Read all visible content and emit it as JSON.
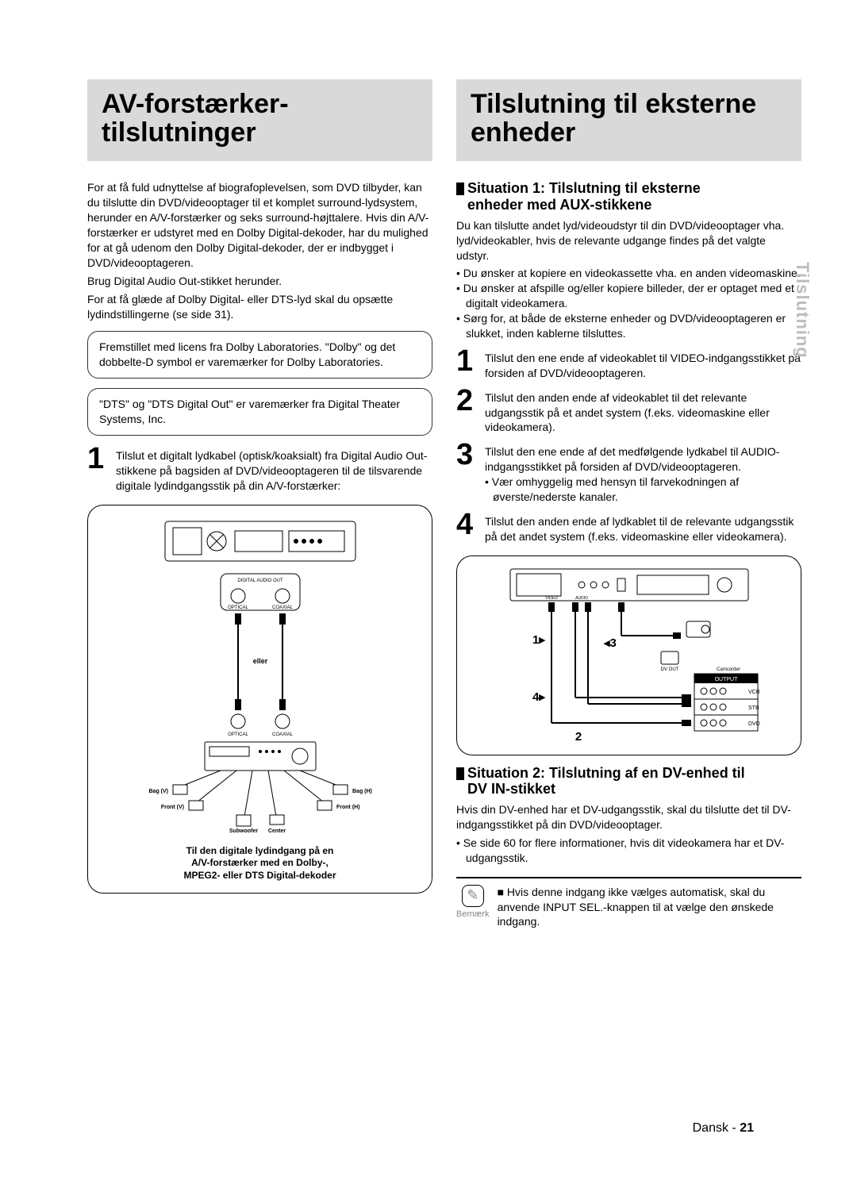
{
  "page": {
    "side_tab": "Tilslutning",
    "footer_lang": "Dansk",
    "footer_page": "21",
    "colors": {
      "title_bg": "#d9d9d9",
      "text": "#000000",
      "side_tab": "#bdbdbd"
    }
  },
  "left": {
    "title_line1": "AV-forstærker-",
    "title_line2": "tilslutninger",
    "intro": "For at få fuld udnyttelse af biografoplevelsen, som DVD tilbyder, kan du tilslutte din DVD/videooptager til et komplet surround-lydsystem, herunder en A/V-forstærker og seks surround-højttalere. Hvis din A/V-forstærker er udstyret med en Dolby Digital-dekoder, har du mulighed for at gå udenom den Dolby Digital-dekoder, der er indbygget i DVD/videooptageren.",
    "intro2": "Brug Digital Audio Out-stikket herunder.",
    "intro3": "For at få glæde af Dolby Digital- eller DTS-lyd skal du opsætte lydindstillingerne (se side 31).",
    "box1": "Fremstillet med licens fra Dolby Laboratories. \"Dolby\" og det dobbelte-D symbol er varemærker for Dolby Laboratories.",
    "box2": "\"DTS\" og \"DTS Digital Out\" er varemærker fra Digital Theater Systems, Inc.",
    "step1": "Tilslut et digitalt lydkabel (optisk/koaksialt) fra Digital Audio Out-stikkene på bagsiden af DVD/videooptageren til de tilsvarende digitale lydindgangsstik på din A/V-forstærker:",
    "diagram": {
      "labels": {
        "digital_out": "DIGITAL AUDIO OUT",
        "optical": "OPTICAL",
        "coaxial": "COAXIAL",
        "or": "eller",
        "bag_v": "Bag (V)",
        "bag_h": "Bag (H)",
        "front_v": "Front (V)",
        "front_h": "Front (H)",
        "sub": "Subwoofer",
        "center": "Center"
      },
      "caption_l1": "Til den digitale lydindgang på en",
      "caption_l2": "A/V-forstærker med en Dolby-,",
      "caption_l3": "MPEG2- eller DTS Digital-dekoder"
    }
  },
  "right": {
    "title_line1": "Tilslutning til eksterne",
    "title_line2": "enheder",
    "s1_head_l1": "Situation 1: Tilslutning til eksterne",
    "s1_head_l2": "enheder med AUX-stikkene",
    "s1_intro": "Du kan tilslutte andet lyd/videoudstyr til din DVD/videooptager vha. lyd/videokabler, hvis de relevante udgange findes på det valgte udstyr.",
    "s1_bullets": [
      "• Du ønsker at kopiere en videokassette vha. en anden videomaskine.",
      "• Du ønsker at afspille og/eller kopiere billeder, der er optaget med et digitalt videokamera.",
      "• Sørg for, at både de eksterne enheder og DVD/videooptageren er slukket, inden kablerne tilsluttes."
    ],
    "steps": [
      {
        "n": "1",
        "t": "Tilslut den ene ende af videokablet til VIDEO-indgangsstikket på forsiden af DVD/videooptageren."
      },
      {
        "n": "2",
        "t": "Tilslut den anden ende af videokablet til det relevante udgangsstik på et andet system (f.eks. videomaskine eller videokamera)."
      },
      {
        "n": "3",
        "t": "Tilslut den ene ende af det medfølgende lydkabel til AUDIO-indgangsstikket på forsiden af DVD/videooptageren.",
        "sub": "• Vær omhyggelig med hensyn til farvekodningen af øverste/nederste kanaler."
      },
      {
        "n": "4",
        "t": "Tilslut den anden ende af lydkablet til de relevante udgangsstik på det andet system (f.eks. videomaskine eller videokamera)."
      }
    ],
    "diagram": {
      "labels": {
        "output": "OUTPUT",
        "vcr": "VCR",
        "stb": "STB",
        "dvd": "DVD",
        "video": "VIDEO",
        "audio": "AUDIO",
        "camcorder": "Camcorder"
      },
      "markers": [
        "1▸",
        "4▸",
        "◂3",
        "2"
      ]
    },
    "s2_head_l1": "Situation 2: Tilslutning af en DV-enhed til",
    "s2_head_l2": "DV IN-stikket",
    "s2_intro": "Hvis din DV-enhed har et DV-udgangsstik, skal du tilslutte det til DV-indgangsstikket på din DVD/videooptager.",
    "s2_bullet": "• Se side 60 for flere informationer, hvis dit videokamera har et DV-udgangsstik.",
    "note_icon_label": "Bemærk",
    "note_text": "■ Hvis denne indgang ikke vælges automatisk, skal du anvende INPUT SEL.-knappen til at vælge den ønskede indgang."
  }
}
